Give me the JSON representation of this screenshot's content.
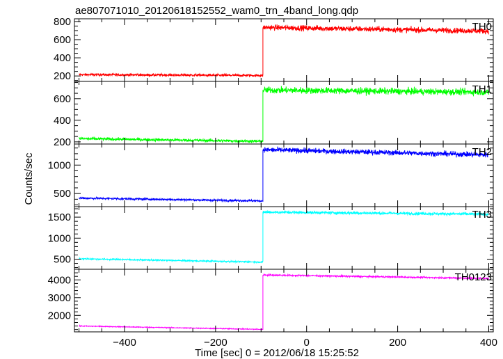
{
  "title": "ae807071010_20120618152552_wam0_trn_4band_long.qdp",
  "chart_data": {
    "type": "line",
    "title": "ae807071010_20120618152552_wam0_trn_4band_long.qdp",
    "xlabel": "Time [sec] 0 = 2012/06/18 15:25:52",
    "ylabel": "Counts/sec",
    "xlim": [
      -510,
      410
    ],
    "x_ticks": [
      -400,
      -200,
      0,
      200,
      400
    ],
    "x_tick_labels": [
      "−400",
      "−200",
      "0",
      "200",
      "400"
    ],
    "step_time": -96,
    "grid": false,
    "panels": [
      {
        "name": "TH0",
        "color": "#ff0000",
        "ylim": [
          140,
          830
        ],
        "y_ticks": [
          200,
          400,
          600,
          800
        ],
        "segments": [
          {
            "x": [
              -500,
              -96
            ],
            "level_start": 215,
            "level_end": 205,
            "noise": 14
          },
          {
            "x": [
              -96,
              400
            ],
            "level_start": 735,
            "level_end": 695,
            "noise": 30
          }
        ]
      },
      {
        "name": "TH1",
        "color": "#00ff00",
        "ylim": [
          180,
          760
        ],
        "y_ticks": [
          200,
          400,
          600
        ],
        "segments": [
          {
            "x": [
              -500,
              -96
            ],
            "level_start": 230,
            "level_end": 205,
            "noise": 14
          },
          {
            "x": [
              -96,
              400
            ],
            "level_start": 680,
            "level_end": 660,
            "noise": 30
          }
        ]
      },
      {
        "name": "TH2",
        "color": "#0000ff",
        "ylim": [
          270,
          1370
        ],
        "y_ticks": [
          500,
          1000
        ],
        "segments": [
          {
            "x": [
              -500,
              -96
            ],
            "level_start": 420,
            "level_end": 370,
            "noise": 18
          },
          {
            "x": [
              -96,
              400
            ],
            "level_start": 1270,
            "level_end": 1180,
            "noise": 45
          }
        ]
      },
      {
        "name": "TH3",
        "color": "#00ffff",
        "ylim": [
          260,
          1750
        ],
        "y_ticks": [
          500,
          1000,
          1500
        ],
        "segments": [
          {
            "x": [
              -500,
              -96
            ],
            "level_start": 510,
            "level_end": 430,
            "noise": 18
          },
          {
            "x": [
              -96,
              400
            ],
            "level_start": 1620,
            "level_end": 1570,
            "noise": 35
          }
        ]
      },
      {
        "name": "TH0123",
        "color": "#ff00ff",
        "ylim": [
          1070,
          4600
        ],
        "y_ticks": [
          2000,
          3000,
          4000
        ],
        "segments": [
          {
            "x": [
              -500,
              -96
            ],
            "level_start": 1400,
            "level_end": 1210,
            "noise": 25
          },
          {
            "x": [
              -96,
              400
            ],
            "level_start": 4280,
            "level_end": 4080,
            "noise": 45
          }
        ]
      }
    ]
  }
}
